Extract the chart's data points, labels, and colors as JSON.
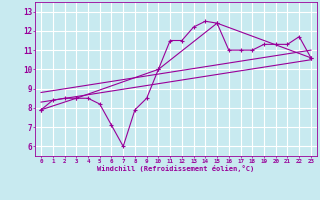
{
  "background_color": "#c8eaf0",
  "grid_color": "#ffffff",
  "line_color": "#990099",
  "marker": "+",
  "xlabel": "Windchill (Refroidissement éolien,°C)",
  "xlim": [
    -0.5,
    23.5
  ],
  "ylim": [
    5.5,
    13.5
  ],
  "yticks": [
    6,
    7,
    8,
    9,
    10,
    11,
    12,
    13
  ],
  "xticks": [
    0,
    1,
    2,
    3,
    4,
    5,
    6,
    7,
    8,
    9,
    10,
    11,
    12,
    13,
    14,
    15,
    16,
    17,
    18,
    19,
    20,
    21,
    22,
    23
  ],
  "series1_x": [
    0,
    1,
    2,
    3,
    4,
    5,
    6,
    7,
    8,
    9,
    10,
    11,
    12,
    13,
    14,
    15,
    16,
    17,
    18,
    19,
    20,
    21,
    22,
    23
  ],
  "series1_y": [
    7.9,
    8.4,
    8.5,
    8.5,
    8.5,
    8.2,
    7.1,
    6.0,
    7.9,
    8.5,
    10.0,
    11.5,
    11.5,
    12.2,
    12.5,
    12.4,
    11.0,
    11.0,
    11.0,
    11.3,
    11.3,
    11.3,
    11.7,
    10.6
  ],
  "series2_x": [
    0,
    3,
    10,
    15,
    23
  ],
  "series2_y": [
    7.9,
    8.5,
    10.0,
    12.4,
    10.6
  ],
  "series3_x": [
    0,
    23
  ],
  "series3_y": [
    8.3,
    10.5
  ],
  "series4_x": [
    0,
    23
  ],
  "series4_y": [
    8.8,
    11.0
  ]
}
